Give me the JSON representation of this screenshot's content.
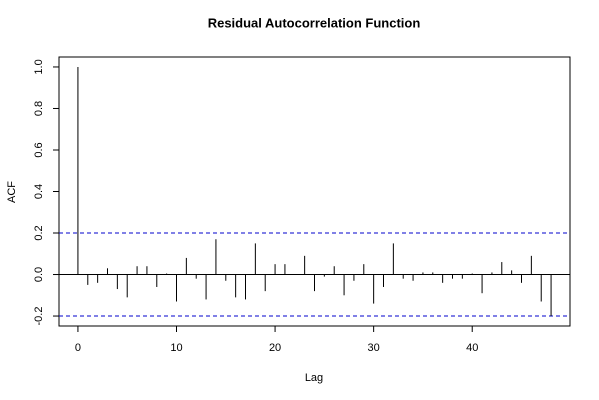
{
  "chart_data": {
    "type": "acf",
    "title": "Residual Autocorrelation Function",
    "x_label": "Lag",
    "y_label": "ACF",
    "x": [
      0,
      1,
      2,
      3,
      4,
      5,
      6,
      7,
      8,
      9,
      10,
      11,
      12,
      13,
      14,
      15,
      16,
      17,
      18,
      19,
      20,
      21,
      22,
      23,
      24,
      25,
      26,
      27,
      28,
      29,
      30,
      31,
      32,
      33,
      34,
      35,
      36,
      37,
      38,
      39,
      40,
      41,
      42,
      43,
      44,
      45,
      46,
      47,
      48
    ],
    "values": [
      1.0,
      -0.05,
      -0.04,
      0.03,
      -0.07,
      -0.11,
      0.04,
      0.04,
      -0.06,
      0.005,
      -0.13,
      0.08,
      -0.02,
      -0.12,
      0.17,
      -0.03,
      -0.11,
      -0.12,
      0.15,
      -0.08,
      0.05,
      0.05,
      0.0,
      0.09,
      -0.08,
      -0.01,
      0.04,
      -0.1,
      -0.03,
      0.05,
      -0.14,
      -0.06,
      0.15,
      -0.02,
      -0.03,
      0.01,
      0.01,
      -0.04,
      -0.02,
      -0.02,
      0.005,
      -0.09,
      0.01,
      0.06,
      0.02,
      -0.04,
      0.09,
      -0.13,
      -0.2
    ],
    "color": "#000000",
    "confidence_bounds": [
      0.2,
      -0.2
    ],
    "confidence_color": "#0000cc",
    "xlim": [
      -1.92,
      49.92
    ],
    "xticks": [
      0,
      10,
      20,
      30,
      40
    ],
    "ylim": [
      -0.248,
      1.048
    ],
    "yticks": [
      {
        "value": -0.2,
        "label": "-0.2"
      },
      {
        "value": 0,
        "label": "0.0"
      },
      {
        "value": 0.2,
        "label": "0.2"
      },
      {
        "value": 0.4,
        "label": "0.4"
      },
      {
        "value": 0.6,
        "label": "0.6"
      },
      {
        "value": 0.8,
        "label": "0.8"
      },
      {
        "value": 1.0,
        "label": "1.0"
      }
    ]
  }
}
